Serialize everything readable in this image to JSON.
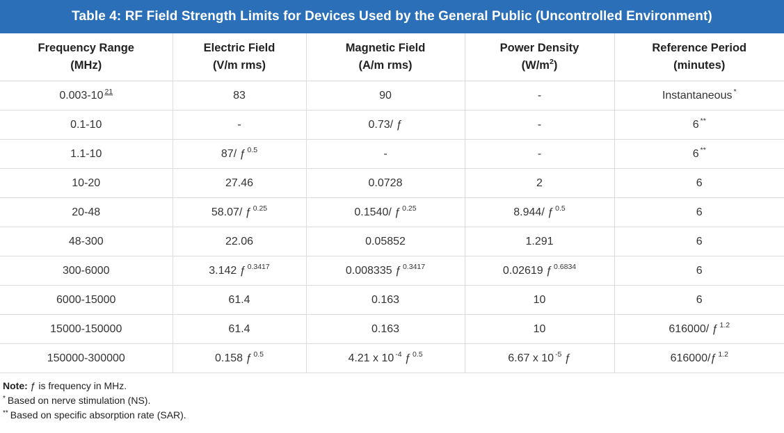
{
  "title": "Table 4: RF Field Strength Limits for Devices Used by the General Public (Uncontrolled Environment)",
  "columns": [
    {
      "line1": "Frequency Range",
      "line2": "(MHz)",
      "sup": "",
      "after": ""
    },
    {
      "line1": "Electric Field",
      "line2": "(V/m rms)",
      "sup": "",
      "after": ""
    },
    {
      "line1": "Magnetic Field",
      "line2": "(A/m rms)",
      "sup": "",
      "after": ""
    },
    {
      "line1": "Power Density",
      "line2": "(W/m",
      "sup": "2",
      "after": ")"
    },
    {
      "line1": "Reference Period",
      "line2": "(minutes)",
      "sup": "",
      "after": ""
    }
  ],
  "rows": [
    [
      {
        "t": "0.003-10",
        "s": "21",
        "a": ""
      },
      {
        "t": "83",
        "s": "",
        "a": ""
      },
      {
        "t": "90",
        "s": "",
        "a": ""
      },
      {
        "t": "-",
        "s": "",
        "a": ""
      },
      {
        "t": "Instantaneous",
        "s": "*",
        "a": ""
      }
    ],
    [
      {
        "t": "0.1-10",
        "s": "",
        "a": ""
      },
      {
        "t": "-",
        "s": "",
        "a": ""
      },
      {
        "t": "0.73/ ƒ",
        "s": "",
        "a": ""
      },
      {
        "t": "-",
        "s": "",
        "a": ""
      },
      {
        "t": "6",
        "s": "**",
        "a": ""
      }
    ],
    [
      {
        "t": "1.1-10",
        "s": "",
        "a": ""
      },
      {
        "t": "87/ ƒ",
        "s": "0.5",
        "a": ""
      },
      {
        "t": "-",
        "s": "",
        "a": ""
      },
      {
        "t": "-",
        "s": "",
        "a": ""
      },
      {
        "t": "6",
        "s": "**",
        "a": ""
      }
    ],
    [
      {
        "t": "10-20",
        "s": "",
        "a": ""
      },
      {
        "t": "27.46",
        "s": "",
        "a": ""
      },
      {
        "t": "0.0728",
        "s": "",
        "a": ""
      },
      {
        "t": "2",
        "s": "",
        "a": ""
      },
      {
        "t": "6",
        "s": "",
        "a": ""
      }
    ],
    [
      {
        "t": "20-48",
        "s": "",
        "a": ""
      },
      {
        "t": "58.07/ ƒ",
        "s": "0.25",
        "a": ""
      },
      {
        "t": "0.1540/ ƒ",
        "s": "0.25",
        "a": ""
      },
      {
        "t": "8.944/ ƒ",
        "s": "0.5",
        "a": ""
      },
      {
        "t": "6",
        "s": "",
        "a": ""
      }
    ],
    [
      {
        "t": "48-300",
        "s": "",
        "a": ""
      },
      {
        "t": "22.06",
        "s": "",
        "a": ""
      },
      {
        "t": "0.05852",
        "s": "",
        "a": ""
      },
      {
        "t": "1.291",
        "s": "",
        "a": ""
      },
      {
        "t": "6",
        "s": "",
        "a": ""
      }
    ],
    [
      {
        "t": "300-6000",
        "s": "",
        "a": ""
      },
      {
        "t": "3.142 ƒ",
        "s": "0.3417",
        "a": ""
      },
      {
        "t": "0.008335 ƒ",
        "s": "0.3417",
        "a": ""
      },
      {
        "t": "0.02619 ƒ",
        "s": "0.6834",
        "a": ""
      },
      {
        "t": "6",
        "s": "",
        "a": ""
      }
    ],
    [
      {
        "t": "6000-15000",
        "s": "",
        "a": ""
      },
      {
        "t": "61.4",
        "s": "",
        "a": ""
      },
      {
        "t": "0.163",
        "s": "",
        "a": ""
      },
      {
        "t": "10",
        "s": "",
        "a": ""
      },
      {
        "t": "6",
        "s": "",
        "a": ""
      }
    ],
    [
      {
        "t": "15000-150000",
        "s": "",
        "a": ""
      },
      {
        "t": "61.4",
        "s": "",
        "a": ""
      },
      {
        "t": "0.163",
        "s": "",
        "a": ""
      },
      {
        "t": "10",
        "s": "",
        "a": ""
      },
      {
        "t": "616000/ ƒ",
        "s": "1.2",
        "a": ""
      }
    ],
    [
      {
        "t": "150000-300000",
        "s": "",
        "a": ""
      },
      {
        "t": "0.158 ƒ",
        "s": "0.5",
        "a": ""
      },
      {
        "t": "4.21 x 10",
        "s": "-4",
        "a": " ƒ 0.5"
      },
      {
        "t": "6.67 x 10",
        "s": "-5",
        "a": " ƒ"
      },
      {
        "t": "616000/ƒ",
        "s": "1.2",
        "a": ""
      }
    ]
  ],
  "notes": {
    "note_label": "Note:",
    "note_text": " ƒ is frequency in MHz.",
    "ns_marker": "*",
    "ns_text": "Based on nerve stimulation (NS).",
    "sar_marker": "**",
    "sar_text": "Based on specific absorption rate (SAR)."
  },
  "colors": {
    "header_bg": "#2b6fb8",
    "header_text": "#ffffff",
    "border": "#dcdcdc"
  }
}
